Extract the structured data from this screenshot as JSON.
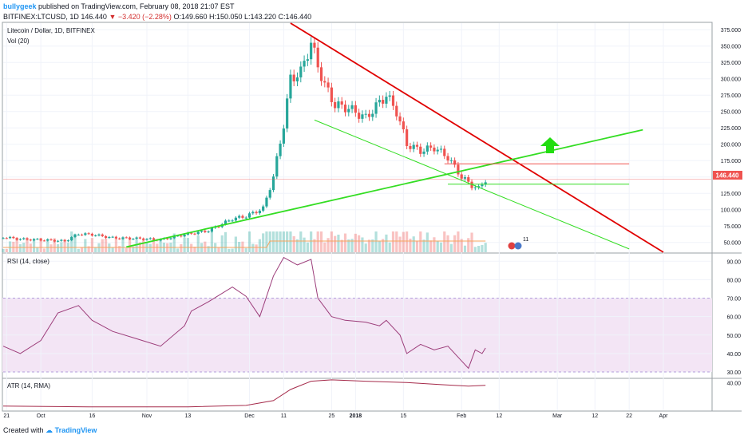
{
  "header": {
    "author": "bullygeek",
    "published": "published on TradingView.com, February 08, 2018 21:07 EST",
    "symbol": "BITFINEX:LTCUSD, 1D",
    "last": "146.440",
    "change": "−3.420 (−2.28%)",
    "ohlc": "O:149.660 H:150.050 L:143.220 C:146.440"
  },
  "footer": {
    "created_with": "Created with",
    "brand": "TradingView"
  },
  "colors": {
    "up": "#26a69a",
    "down": "#ef5350",
    "red_trend": "#e00000",
    "green_trend": "#33dd22",
    "rsi_line": "#9c3d7a",
    "rsi_band": "#f3e5f5",
    "atr_line": "#a52a4a",
    "vol_ma": "#f5a35c"
  },
  "chart_data": [
    {
      "type": "candlestick",
      "title": "Litecoin / Dollar, 1D, BITFINEX",
      "indicator_label": "Vol (20)",
      "price_tag": "146.440",
      "y_ticks": [
        50,
        75,
        100,
        125,
        150,
        175,
        200,
        225,
        250,
        275,
        300,
        325,
        350,
        375
      ],
      "ylim": [
        35,
        385
      ],
      "x_ticks": [
        "21",
        "Oct",
        "16",
        "Nov",
        "13",
        "Dec",
        "11",
        "25",
        "2018",
        "15",
        "Feb",
        "12",
        "Mar",
        "12",
        "22",
        "Apr"
      ],
      "close_series": [
        {
          "date": "2017-09-20",
          "close": 58
        },
        {
          "date": "2017-09-25",
          "close": 55
        },
        {
          "date": "2017-10-01",
          "close": 54
        },
        {
          "date": "2017-10-08",
          "close": 52
        },
        {
          "date": "2017-10-12",
          "close": 63
        },
        {
          "date": "2017-10-16",
          "close": 62
        },
        {
          "date": "2017-10-22",
          "close": 57
        },
        {
          "date": "2017-10-29",
          "close": 56
        },
        {
          "date": "2017-11-05",
          "close": 54
        },
        {
          "date": "2017-11-12",
          "close": 62
        },
        {
          "date": "2017-11-19",
          "close": 68
        },
        {
          "date": "2017-11-26",
          "close": 86
        },
        {
          "date": "2017-11-30",
          "close": 90
        },
        {
          "date": "2017-12-05",
          "close": 102
        },
        {
          "date": "2017-12-08",
          "close": 150
        },
        {
          "date": "2017-12-11",
          "close": 230
        },
        {
          "date": "2017-12-13",
          "close": 300
        },
        {
          "date": "2017-12-16",
          "close": 310
        },
        {
          "date": "2017-12-19",
          "close": 355
        },
        {
          "date": "2017-12-21",
          "close": 320
        },
        {
          "date": "2017-12-23",
          "close": 290
        },
        {
          "date": "2017-12-26",
          "close": 260
        },
        {
          "date": "2017-12-30",
          "close": 255
        },
        {
          "date": "2018-01-04",
          "close": 240
        },
        {
          "date": "2018-01-07",
          "close": 258
        },
        {
          "date": "2018-01-10",
          "close": 275
        },
        {
          "date": "2018-01-13",
          "close": 250
        },
        {
          "date": "2018-01-16",
          "close": 200
        },
        {
          "date": "2018-01-20",
          "close": 190
        },
        {
          "date": "2018-01-24",
          "close": 195
        },
        {
          "date": "2018-01-28",
          "close": 180
        },
        {
          "date": "2018-02-01",
          "close": 150
        },
        {
          "date": "2018-02-04",
          "close": 137
        },
        {
          "date": "2018-02-06",
          "close": 132
        },
        {
          "date": "2018-02-08",
          "close": 146
        }
      ],
      "overlays": [
        {
          "name": "descending resistance",
          "color": "#e00000",
          "points": [
            [
              "2017-12-13",
              385
            ],
            [
              "2018-04-01",
              35
            ]
          ]
        },
        {
          "name": "rising support",
          "color": "#33dd22",
          "points": [
            [
              "2017-10-26",
              43
            ],
            [
              "2018-03-26",
              222
            ]
          ]
        },
        {
          "name": "lower channel",
          "color": "#33dd22",
          "points": [
            [
              "2017-12-20",
              237
            ],
            [
              "2018-03-22",
              40
            ]
          ]
        },
        {
          "name": "resistance level",
          "color": "#ef5350",
          "points": [
            [
              "2018-01-27",
              170
            ],
            [
              "2018-03-22",
              170
            ]
          ]
        },
        {
          "name": "support level",
          "color": "#33dd22",
          "points": [
            [
              "2018-01-28",
              139
            ],
            [
              "2018-03-22",
              139
            ]
          ]
        }
      ],
      "annotation": "up arrow"
    },
    {
      "type": "line",
      "title": "RSI (14, close)",
      "y_ticks": [
        30,
        40,
        50,
        60,
        70,
        80,
        90
      ],
      "band": [
        30,
        70
      ],
      "ylim": [
        27,
        94
      ],
      "series": [
        {
          "name": "RSI",
          "points": [
            [
              "2017-09-20",
              44
            ],
            [
              "2017-09-25",
              40
            ],
            [
              "2017-10-01",
              47
            ],
            [
              "2017-10-06",
              62
            ],
            [
              "2017-10-12",
              66
            ],
            [
              "2017-10-16",
              58
            ],
            [
              "2017-10-22",
              52
            ],
            [
              "2017-10-29",
              48
            ],
            [
              "2017-11-05",
              44
            ],
            [
              "2017-11-12",
              55
            ],
            [
              "2017-11-14",
              63
            ],
            [
              "2017-11-19",
              68
            ],
            [
              "2017-11-26",
              76
            ],
            [
              "2017-11-30",
              71
            ],
            [
              "2017-12-04",
              60
            ],
            [
              "2017-12-08",
              82
            ],
            [
              "2017-12-11",
              92
            ],
            [
              "2017-12-15",
              88
            ],
            [
              "2017-12-19",
              91
            ],
            [
              "2017-12-21",
              70
            ],
            [
              "2017-12-25",
              60
            ],
            [
              "2017-12-29",
              58
            ],
            [
              "2018-01-04",
              57
            ],
            [
              "2018-01-08",
              55
            ],
            [
              "2018-01-10",
              58
            ],
            [
              "2018-01-14",
              50
            ],
            [
              "2018-01-16",
              40
            ],
            [
              "2018-01-20",
              45
            ],
            [
              "2018-01-24",
              42
            ],
            [
              "2018-01-28",
              44
            ],
            [
              "2018-02-01",
              36
            ],
            [
              "2018-02-03",
              32
            ],
            [
              "2018-02-05",
              42
            ],
            [
              "2018-02-07",
              40
            ],
            [
              "2018-02-08",
              43
            ]
          ]
        }
      ]
    },
    {
      "type": "line",
      "title": "ATR (14, RMA)",
      "y_ticks": [
        40
      ],
      "ylim": [
        0,
        45
      ],
      "series": [
        {
          "name": "ATR",
          "points": [
            [
              "2017-09-20",
              6
            ],
            [
              "2017-10-15",
              5
            ],
            [
              "2017-11-13",
              5
            ],
            [
              "2017-11-30",
              7
            ],
            [
              "2017-12-08",
              14
            ],
            [
              "2017-12-13",
              30
            ],
            [
              "2017-12-19",
              42
            ],
            [
              "2017-12-25",
              44
            ],
            [
              "2018-01-04",
              42
            ],
            [
              "2018-01-16",
              40
            ],
            [
              "2018-01-26",
              37
            ],
            [
              "2018-02-03",
              35
            ],
            [
              "2018-02-08",
              36
            ]
          ]
        }
      ]
    }
  ]
}
